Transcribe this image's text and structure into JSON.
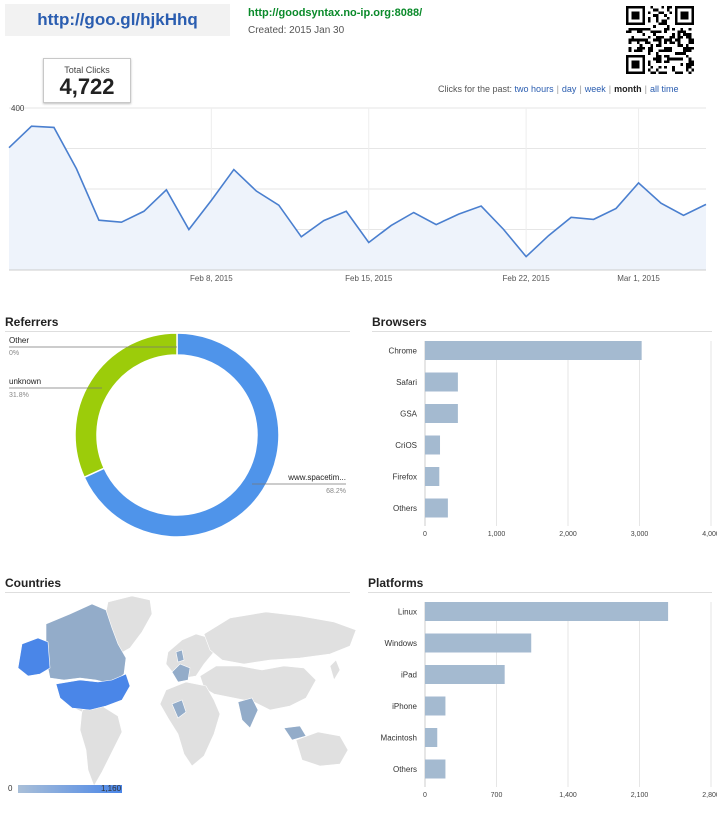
{
  "header": {
    "short_url": "http://goo.gl/hjkHhq",
    "long_url": "http://goodsyntax.no-ip.org:8088/",
    "created": "Created: 2015 Jan 30",
    "qr_icon": "qr-code-icon"
  },
  "total": {
    "label": "Total Clicks",
    "value": "4,722"
  },
  "range": {
    "label": "Clicks for the past:",
    "options": [
      "two hours",
      "day",
      "week",
      "month",
      "all time"
    ],
    "selected": "month"
  },
  "sections": {
    "referrers": "Referrers",
    "browsers": "Browsers",
    "countries": "Countries",
    "platforms": "Platforms"
  },
  "colors": {
    "line": "#4a7fcf",
    "area": "#eef3fb",
    "bar": "#a4bad0",
    "donut_blue": "#4f94ea",
    "donut_green": "#9ccc0a",
    "map_land": "#e0e0e0",
    "map_low": "#93acc9",
    "map_high": "#4a86e8"
  },
  "chart_data": [
    {
      "id": "clicks",
      "type": "area",
      "title": "",
      "xlabel": "",
      "ylabel": "",
      "ylim": [
        0,
        400
      ],
      "yticks": [
        100,
        200,
        300,
        400
      ],
      "x_ticks": [
        {
          "label": "Feb 8, 2015",
          "index": 9
        },
        {
          "label": "Feb 15, 2015",
          "index": 16
        },
        {
          "label": "Feb 22, 2015",
          "index": 23
        },
        {
          "label": "Mar 1, 2015",
          "index": 28
        }
      ],
      "x": [
        "Jan 30",
        "Jan 31",
        "Feb 1",
        "Feb 2",
        "Feb 3",
        "Feb 4",
        "Feb 5",
        "Feb 6",
        "Feb 7",
        "Feb 8",
        "Feb 9",
        "Feb 10",
        "Feb 11",
        "Feb 12",
        "Feb 13",
        "Feb 14",
        "Feb 15",
        "Feb 16",
        "Feb 17",
        "Feb 18",
        "Feb 19",
        "Feb 20",
        "Feb 21",
        "Feb 22",
        "Feb 23",
        "Feb 24",
        "Feb 25",
        "Feb 26",
        "Feb 27",
        "Feb 28",
        "Mar 1",
        "Mar 2"
      ],
      "values": [
        302,
        355,
        352,
        250,
        123,
        118,
        145,
        198,
        100,
        172,
        248,
        195,
        160,
        82,
        122,
        145,
        68,
        110,
        142,
        112,
        138,
        158,
        100,
        33,
        85,
        130,
        125,
        152,
        215,
        165,
        135,
        162
      ],
      "grid": true
    },
    {
      "id": "referrers",
      "type": "pie",
      "title": "",
      "slices": [
        {
          "label": "www.spacetim...",
          "value": 68.2,
          "pct_label": "68.2%"
        },
        {
          "label": "unknown",
          "value": 31.8,
          "pct_label": "31.8%"
        },
        {
          "label": "Other",
          "value": 0,
          "pct_label": "0%"
        }
      ]
    },
    {
      "id": "browsers",
      "type": "bar",
      "title": "",
      "orientation": "horizontal",
      "categories": [
        "Chrome",
        "Safari",
        "GSA",
        "CriOS",
        "Firefox",
        "Others"
      ],
      "values": [
        3030,
        460,
        460,
        210,
        200,
        320
      ],
      "xlim": [
        0,
        4000
      ],
      "xticks": [
        "0",
        "1,000",
        "2,000",
        "3,000",
        "4,000"
      ],
      "grid": true
    },
    {
      "id": "countries",
      "type": "heatmap",
      "title": "",
      "scale_min": "0",
      "scale_max": "1,160",
      "highlighted": [
        {
          "region": "United States",
          "level": 1.0
        },
        {
          "region": "Alaska",
          "level": 0.9
        },
        {
          "region": "Canada",
          "level": 0.35
        },
        {
          "region": "Greenland",
          "level": 0.0
        },
        {
          "region": "India",
          "level": 0.4
        },
        {
          "region": "Europe",
          "level": 0.25
        },
        {
          "region": "Southeast Asia",
          "level": 0.3
        },
        {
          "region": "Africa",
          "level": 0.2
        }
      ]
    },
    {
      "id": "platforms",
      "type": "bar",
      "title": "",
      "orientation": "horizontal",
      "categories": [
        "Linux",
        "Windows",
        "iPad",
        "iPhone",
        "Macintosh",
        "Others"
      ],
      "values": [
        2380,
        1040,
        780,
        200,
        120,
        200
      ],
      "xlim": [
        0,
        2800
      ],
      "xticks": [
        "0",
        "700",
        "1,400",
        "2,100",
        "2,800"
      ],
      "grid": true
    }
  ]
}
